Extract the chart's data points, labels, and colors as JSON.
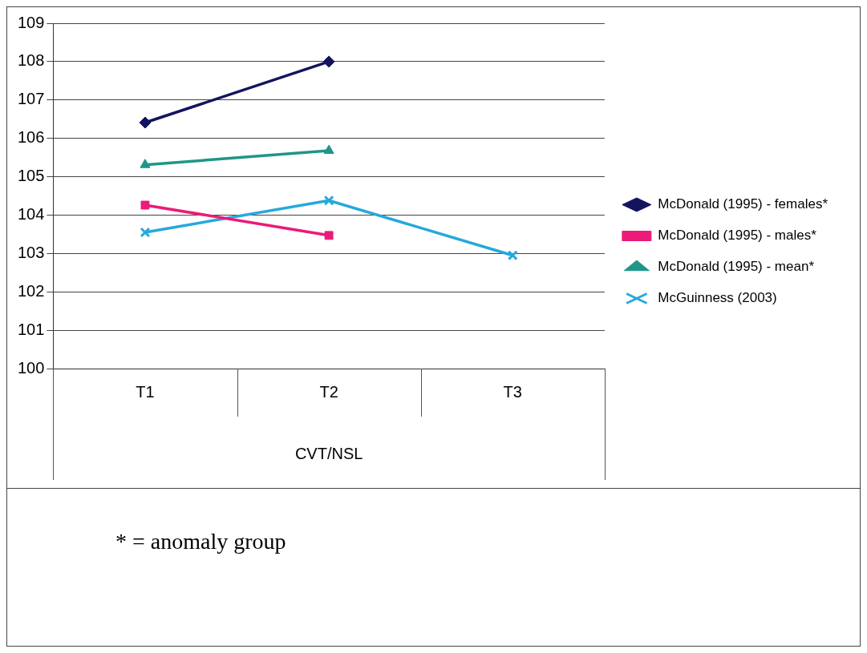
{
  "chart_data": {
    "type": "line",
    "categories": [
      "T1",
      "T2",
      "T3"
    ],
    "xlabel": "CVT/NSL",
    "series": [
      {
        "name": "McDonald (1995) - females*",
        "color": "#14145e",
        "marker": "diamond",
        "values": [
          106.41,
          108.0,
          null
        ]
      },
      {
        "name": "McDonald (1995) - males*",
        "color": "#ec1a78",
        "marker": "square",
        "values": [
          104.26,
          103.47,
          null
        ]
      },
      {
        "name": "McDonald (1995) - mean*",
        "color": "#1f9688",
        "marker": "triangle",
        "values": [
          105.31,
          105.68,
          null
        ]
      },
      {
        "name": "McGuinness (2003)",
        "color": "#26a8dc",
        "marker": "cross",
        "values": [
          103.55,
          104.38,
          102.95
        ]
      }
    ],
    "ylim": [
      100,
      109
    ],
    "yticks": [
      100,
      101,
      102,
      103,
      104,
      105,
      106,
      107,
      108,
      109
    ],
    "grid": "y",
    "legend": "right",
    "annotations": [
      "* = anomaly group"
    ]
  }
}
